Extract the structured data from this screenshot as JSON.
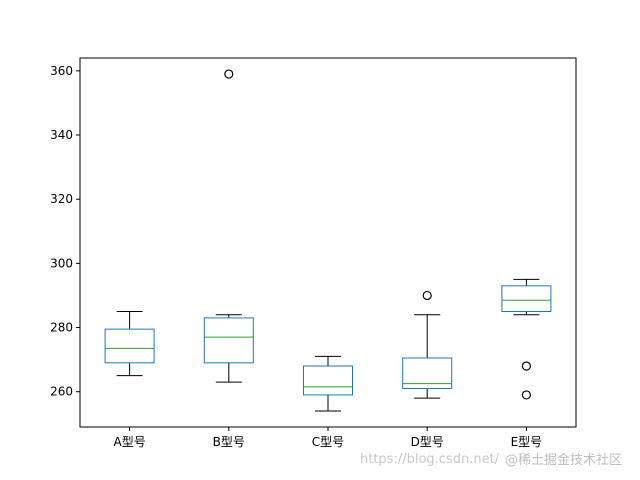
{
  "chart_data": {
    "type": "boxplot",
    "categories": [
      "A型号",
      "B型号",
      "C型号",
      "D型号",
      "E型号"
    ],
    "boxes": [
      {
        "whisker_low": 265,
        "q1": 269,
        "median": 273.5,
        "q3": 279.5,
        "whisker_high": 285,
        "outliers": []
      },
      {
        "whisker_low": 263,
        "q1": 269,
        "median": 277,
        "q3": 283,
        "whisker_high": 284,
        "outliers": [
          359
        ]
      },
      {
        "whisker_low": 254,
        "q1": 259,
        "median": 261.5,
        "q3": 268,
        "whisker_high": 271,
        "outliers": []
      },
      {
        "whisker_low": 258,
        "q1": 261,
        "median": 262.5,
        "q3": 270.5,
        "whisker_high": 284,
        "outliers": [
          290
        ]
      },
      {
        "whisker_low": 284,
        "q1": 285,
        "median": 288.5,
        "q3": 293,
        "whisker_high": 295,
        "outliers": [
          268,
          259
        ]
      }
    ],
    "yticks": [
      260,
      280,
      300,
      320,
      340,
      360
    ],
    "ylim": [
      249,
      364
    ],
    "grid": false,
    "colors": {
      "box": "#1f77b4",
      "median": "#2ca02c",
      "whisker": "#000000",
      "outlier": "#000000"
    }
  },
  "watermark": {
    "url": "https://blog.csdn.net/",
    "brand": "@稀土掘金技术社区"
  }
}
